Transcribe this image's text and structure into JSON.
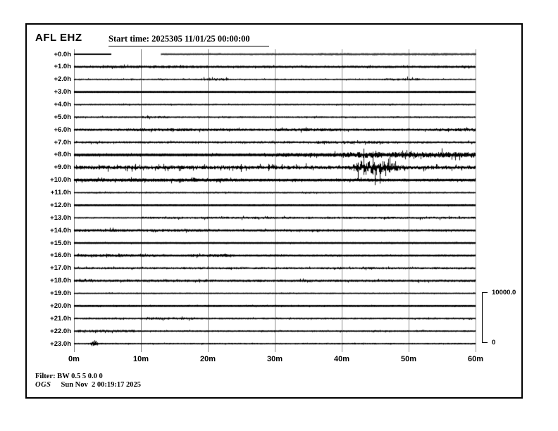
{
  "header": {
    "station": "AFL EHZ",
    "start_time": "Start time: 2025305 11/01/25 00:00:00"
  },
  "footer": {
    "filter": "Filter: BW 0.5 5 0.0 0",
    "agency": "OGS",
    "timestamp": "Sun Nov  2 00:19:17 2025"
  },
  "scale": {
    "max": "10000.0",
    "min": "0"
  },
  "colors": {
    "trace": "#000000",
    "gridline": "#8c8c8c",
    "background": "#ffffff"
  },
  "chart_data": {
    "type": "line",
    "subtype": "helicorder-seismogram",
    "station": "AFL EHZ",
    "channel": "EHZ",
    "start_time": "2025305 11/01/25 00:00:00",
    "minutes_per_line": 60,
    "x_tick_labels": [
      "0m",
      "10m",
      "20m",
      "30m",
      "40m",
      "50m",
      "60m"
    ],
    "amplitude_scale": {
      "max_label": "10000.0",
      "min_label": "0"
    },
    "notable_features": [
      {
        "row": "+0.0h",
        "description": "data gap from ~5.5m to ~13m"
      },
      {
        "row": "+8.0h",
        "description": "elevated continuous noise from ~35m to 60m"
      },
      {
        "row": "+9.0h",
        "description": "large seismic event ~41m-51m, peak amplitude 43m-46m"
      },
      {
        "row": "+23.0h",
        "description": "small event burst near 3m"
      }
    ],
    "rows": [
      {
        "label": "+0.0h",
        "thickness": 2.0,
        "segments": [
          [
            0,
            5.5
          ],
          [
            13,
            60
          ]
        ],
        "noise": [
          [
            13,
            35,
            0.3
          ],
          [
            35,
            60,
            0.65
          ]
        ]
      },
      {
        "label": "+1.0h",
        "thickness": 2.0,
        "noise": [
          [
            0,
            4,
            0.5
          ],
          [
            4,
            20,
            0.9
          ],
          [
            20,
            60,
            0.6
          ]
        ]
      },
      {
        "label": "+2.0h",
        "thickness": 1.2,
        "noise": [
          [
            0,
            19,
            0.45
          ],
          [
            19,
            23,
            1.2
          ],
          [
            23,
            46,
            0.4
          ],
          [
            46,
            52,
            1.1
          ],
          [
            52,
            60,
            0.4
          ]
        ]
      },
      {
        "label": "+3.0h",
        "thickness": 2.6,
        "noise": [
          [
            0,
            60,
            0.15
          ]
        ]
      },
      {
        "label": "+4.0h",
        "thickness": 1.4,
        "noise": [
          [
            0,
            60,
            0.35
          ]
        ]
      },
      {
        "label": "+5.0h",
        "thickness": 1.4,
        "noise": [
          [
            0,
            10,
            0.5
          ],
          [
            10,
            14,
            1.0
          ],
          [
            14,
            60,
            0.45
          ]
        ]
      },
      {
        "label": "+6.0h",
        "thickness": 2.0,
        "noise": [
          [
            0,
            8,
            0.7
          ],
          [
            8,
            20,
            1.1
          ],
          [
            20,
            30,
            0.7
          ],
          [
            30,
            40,
            1.1
          ],
          [
            40,
            54,
            0.7
          ],
          [
            54,
            60,
            1.2
          ]
        ]
      },
      {
        "label": "+7.0h",
        "thickness": 1.6,
        "noise": [
          [
            0,
            36,
            0.7
          ],
          [
            36,
            47,
            1.1
          ],
          [
            47,
            60,
            0.7
          ]
        ]
      },
      {
        "label": "+8.0h",
        "thickness": 3.0,
        "noise": [
          [
            0,
            30,
            0.5
          ],
          [
            30,
            40,
            1.3
          ],
          [
            40,
            60,
            2.6
          ]
        ]
      },
      {
        "label": "+9.0h",
        "thickness": 2.0,
        "spikes": 0.05,
        "noise": [
          [
            0,
            60,
            1.7
          ]
        ],
        "events": [
          {
            "start": 40.8,
            "peakStart": 43.2,
            "peakEnd": 46.3,
            "end": 51.5,
            "amp": 10.5
          }
        ]
      },
      {
        "label": "+10.0h",
        "thickness": 2.6,
        "noise": [
          [
            0,
            25,
            1.1
          ],
          [
            25,
            41,
            0.6
          ],
          [
            41,
            47,
            1.0
          ],
          [
            47,
            60,
            0.6
          ]
        ]
      },
      {
        "label": "+11.0h",
        "thickness": 1.4,
        "noise": [
          [
            0,
            60,
            0.4
          ]
        ]
      },
      {
        "label": "+12.0h",
        "thickness": 2.4,
        "noise": [
          [
            0,
            60,
            0.25
          ]
        ]
      },
      {
        "label": "+13.0h",
        "thickness": 1.5,
        "noise": [
          [
            0,
            10,
            0.35
          ],
          [
            10,
            60,
            0.8
          ]
        ]
      },
      {
        "label": "+14.0h",
        "thickness": 2.0,
        "noise": [
          [
            0,
            20,
            0.9
          ],
          [
            20,
            60,
            0.55
          ]
        ]
      },
      {
        "label": "+15.0h",
        "thickness": 2.2,
        "noise": [
          [
            0,
            60,
            0.25
          ]
        ]
      },
      {
        "label": "+16.0h",
        "thickness": 2.2,
        "noise": [
          [
            0,
            12,
            0.8
          ],
          [
            12,
            17,
            0.4
          ],
          [
            17,
            24,
            0.9
          ],
          [
            24,
            60,
            0.35
          ]
        ]
      },
      {
        "label": "+17.0h",
        "thickness": 1.5,
        "noise": [
          [
            0,
            60,
            0.75
          ]
        ]
      },
      {
        "label": "+18.0h",
        "thickness": 1.8,
        "noise": [
          [
            0,
            60,
            0.8
          ]
        ]
      },
      {
        "label": "+19.0h",
        "thickness": 1.4,
        "noise": [
          [
            0,
            60,
            0.3
          ]
        ]
      },
      {
        "label": "+20.0h",
        "thickness": 2.4,
        "noise": [
          [
            0,
            60,
            0.22
          ]
        ]
      },
      {
        "label": "+21.0h",
        "thickness": 1.5,
        "noise": [
          [
            0,
            11,
            0.5
          ],
          [
            11,
            18,
            0.95
          ],
          [
            18,
            60,
            0.45
          ]
        ]
      },
      {
        "label": "+22.0h",
        "thickness": 1.5,
        "noise": [
          [
            0,
            9,
            1.0
          ],
          [
            9,
            60,
            0.4
          ]
        ]
      },
      {
        "label": "+23.0h",
        "thickness": 1.5,
        "noise": [
          [
            0,
            60,
            0.35
          ]
        ],
        "events": [
          {
            "start": 2.3,
            "peakStart": 2.7,
            "peakEnd": 3.3,
            "end": 4.2,
            "amp": 4.2
          }
        ]
      }
    ]
  }
}
